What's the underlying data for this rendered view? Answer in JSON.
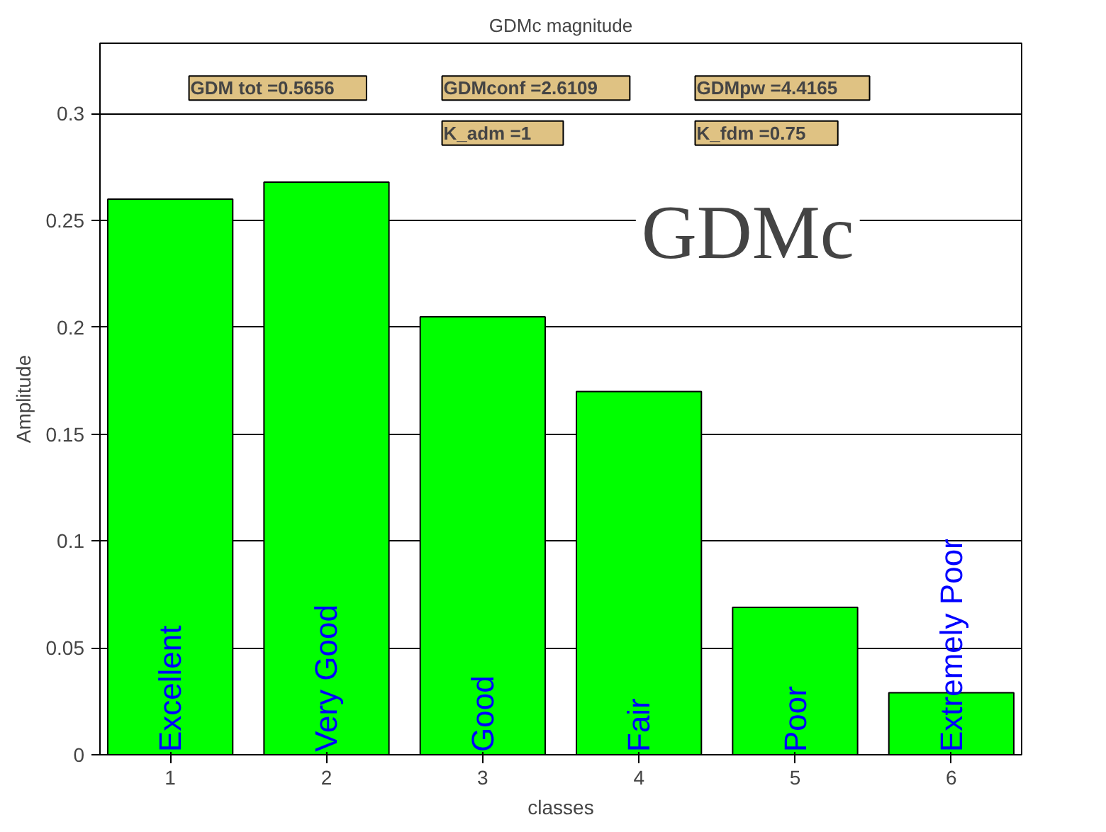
{
  "chart_data": {
    "type": "bar",
    "title": "GDMc magnitude",
    "xlabel": "classes",
    "ylabel": "Amplitude",
    "x": [
      1,
      2,
      3,
      4,
      5,
      6
    ],
    "values": [
      0.26,
      0.268,
      0.205,
      0.17,
      0.069,
      0.029
    ],
    "color": "#00ff00",
    "xlim": [
      0.55,
      6.45
    ],
    "xticks": [
      1,
      2,
      3,
      4,
      5,
      6
    ],
    "ylim": [
      0,
      0.333
    ],
    "yticks": [
      0,
      0.05,
      0.1,
      0.15,
      0.2,
      0.25,
      0.3
    ],
    "grid": "y",
    "annotations": [
      "GDM tot =0.5656",
      "GDMconf =2.6109",
      "GDMpw =4.4165",
      "K_adm =1",
      "K_fdm =0.75",
      "GDMc",
      {
        "text": "Excellent",
        "x": 1,
        "y": 0
      },
      {
        "text": "Very Good",
        "x": 2,
        "y": 0
      },
      {
        "text": "Good",
        "x": 3,
        "y": 0
      },
      {
        "text": "Fair",
        "x": 4,
        "y": 0
      },
      {
        "text": "Poor",
        "x": 5,
        "y": 0
      },
      {
        "text": "Extremely Poor",
        "x": 6,
        "y": 0
      }
    ]
  }
}
